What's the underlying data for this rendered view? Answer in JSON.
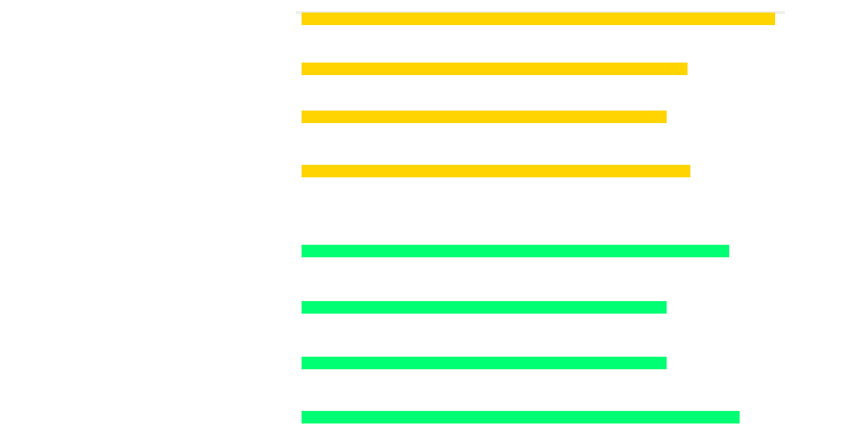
{
  "chart_data": {
    "type": "bar",
    "orientation": "horizontal",
    "categories": [
      "",
      "",
      "",
      "",
      "",
      "",
      "",
      ""
    ],
    "series": [
      {
        "values": [
          100,
          81.5,
          77.1,
          82.1,
          90.3,
          77.1,
          77.1,
          92.5
        ],
        "colors": [
          "#FFD400",
          "#FFD400",
          "#FFD400",
          "#FFD400",
          "#00FF73",
          "#00FF73",
          "#00FF73",
          "#00FF73"
        ]
      }
    ],
    "xlim": [
      0,
      100
    ],
    "grid": false,
    "legend": "none",
    "title": "",
    "xlabel": "",
    "ylabel": ""
  }
}
